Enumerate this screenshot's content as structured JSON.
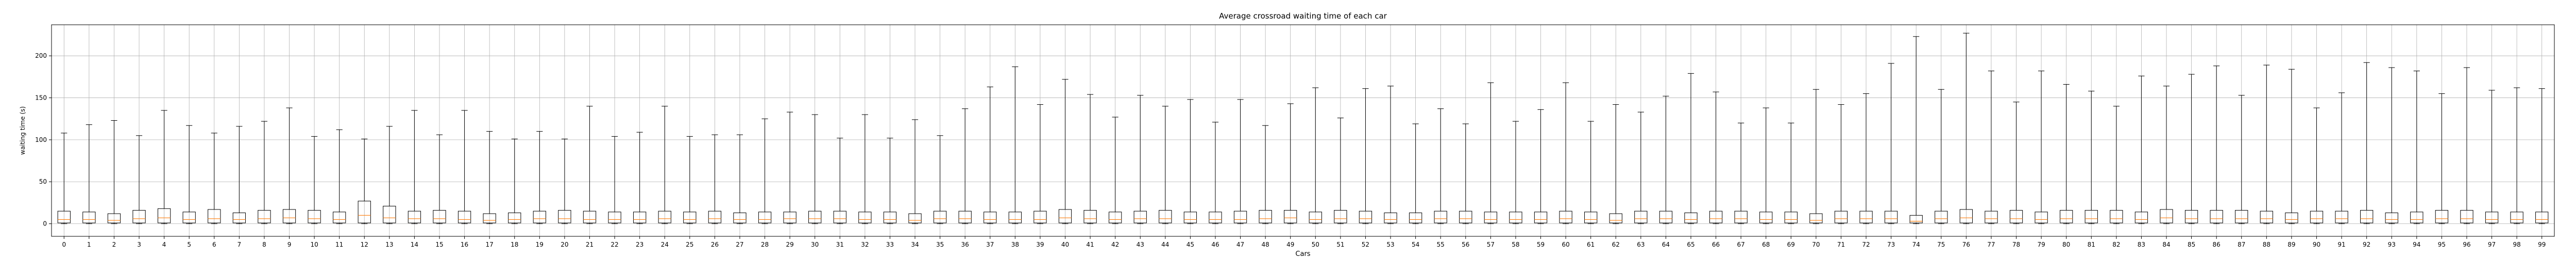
{
  "chart_data": {
    "type": "box",
    "title": "Average crossroad waiting time of each car",
    "xlabel": "Cars",
    "ylabel": "waiting time (s)",
    "ylim": [
      -15,
      237
    ],
    "yticks": [
      0,
      50,
      100,
      150,
      200
    ],
    "grid": true,
    "categories": [
      "0",
      "1",
      "2",
      "3",
      "4",
      "5",
      "6",
      "7",
      "8",
      "9",
      "10",
      "11",
      "12",
      "13",
      "14",
      "15",
      "16",
      "17",
      "18",
      "19",
      "20",
      "21",
      "22",
      "23",
      "24",
      "25",
      "26",
      "27",
      "28",
      "29",
      "30",
      "31",
      "32",
      "33",
      "34",
      "35",
      "36",
      "37",
      "38",
      "39",
      "40",
      "41",
      "42",
      "43",
      "44",
      "45",
      "46",
      "47",
      "48",
      "49",
      "50",
      "51",
      "52",
      "53",
      "54",
      "55",
      "56",
      "57",
      "58",
      "59",
      "60",
      "61",
      "62",
      "63",
      "64",
      "65",
      "66",
      "67",
      "68",
      "69",
      "70",
      "71",
      "72",
      "73",
      "74",
      "75",
      "76",
      "77",
      "78",
      "79",
      "80",
      "81",
      "82",
      "83",
      "84",
      "85",
      "86",
      "87",
      "88",
      "89",
      "90",
      "91",
      "92",
      "93",
      "94",
      "95",
      "96",
      "97",
      "98",
      "99"
    ],
    "boxes": {
      "whislo": [
        0,
        0,
        0,
        0,
        0,
        0,
        0,
        0,
        0,
        0,
        0,
        0,
        0,
        0,
        0,
        0,
        0,
        0,
        0,
        0,
        0,
        0,
        0,
        0,
        0,
        0,
        0,
        0,
        0,
        0,
        0,
        0,
        0,
        0,
        0,
        0,
        0,
        0,
        0,
        0,
        0,
        0,
        0,
        0,
        0,
        0,
        0,
        0,
        0,
        0,
        0,
        0,
        0,
        0,
        0,
        0,
        0,
        0,
        0,
        0,
        0,
        0,
        0,
        0,
        0,
        0,
        0,
        0,
        0,
        0,
        0,
        0,
        0,
        0,
        0,
        0,
        0,
        0,
        0,
        0,
        0,
        0,
        0,
        0,
        0,
        0,
        0,
        0,
        0,
        0,
        0,
        0,
        0,
        0,
        0,
        0,
        0,
        0,
        0,
        0
      ],
      "q1": [
        1,
        1,
        1,
        1,
        1,
        1,
        1,
        1,
        1,
        1,
        1,
        1,
        1,
        1,
        1,
        1,
        1,
        1,
        1,
        1,
        1,
        1,
        1,
        1,
        1,
        1,
        1,
        1,
        1,
        1,
        1,
        1,
        1,
        1,
        1,
        1,
        1,
        1,
        1,
        1,
        1,
        1,
        1,
        1,
        1,
        1,
        1,
        1,
        1,
        1,
        1,
        1,
        1,
        1,
        1,
        1,
        1,
        1,
        1,
        1,
        1,
        1,
        1,
        1,
        1,
        1,
        1,
        1,
        1,
        1,
        1,
        1,
        1,
        1,
        1,
        1,
        1,
        1,
        1,
        1,
        1,
        1,
        1,
        1,
        1,
        1,
        1,
        1,
        1,
        1,
        1,
        1,
        1,
        1,
        1,
        1,
        1,
        1,
        1,
        1
      ],
      "med": [
        5,
        5,
        4,
        6,
        7,
        5,
        6,
        5,
        6,
        7,
        6,
        5,
        10,
        7,
        6,
        6,
        5,
        4,
        5,
        6,
        6,
        5,
        5,
        5,
        6,
        5,
        6,
        5,
        5,
        6,
        6,
        6,
        5,
        5,
        4,
        6,
        6,
        5,
        5,
        5,
        7,
        6,
        5,
        6,
        6,
        5,
        5,
        5,
        6,
        7,
        5,
        6,
        6,
        5,
        5,
        6,
        6,
        5,
        5,
        5,
        6,
        5,
        4,
        6,
        6,
        5,
        6,
        6,
        5,
        5,
        4,
        6,
        6,
        6,
        3,
        6,
        7,
        6,
        6,
        5,
        6,
        6,
        6,
        5,
        7,
        6,
        6,
        6,
        6,
        5,
        6,
        6,
        6,
        5,
        5,
        6,
        6,
        5,
        5,
        5
      ],
      "q3": [
        15,
        14,
        12,
        16,
        18,
        14,
        17,
        13,
        16,
        17,
        16,
        14,
        27,
        21,
        15,
        16,
        15,
        12,
        13,
        15,
        16,
        15,
        14,
        14,
        15,
        14,
        15,
        13,
        14,
        14,
        15,
        15,
        14,
        14,
        12,
        15,
        15,
        14,
        14,
        15,
        17,
        16,
        14,
        15,
        16,
        14,
        14,
        15,
        16,
        16,
        14,
        16,
        15,
        13,
        13,
        15,
        15,
        14,
        14,
        14,
        15,
        14,
        12,
        15,
        15,
        13,
        15,
        15,
        14,
        14,
        12,
        15,
        15,
        15,
        10,
        15,
        17,
        15,
        16,
        14,
        16,
        16,
        16,
        14,
        17,
        16,
        16,
        16,
        15,
        13,
        15,
        15,
        16,
        13,
        14,
        16,
        16,
        14,
        14,
        14
      ],
      "whishi": [
        108,
        118,
        123,
        105,
        135,
        117,
        108,
        116,
        122,
        138,
        104,
        112,
        101,
        116,
        135,
        106,
        135,
        110,
        101,
        110,
        101,
        140,
        104,
        109,
        140,
        104,
        106,
        106,
        125,
        133,
        130,
        102,
        130,
        102,
        124,
        105,
        137,
        163,
        187,
        142,
        172,
        154,
        127,
        153,
        140,
        148,
        121,
        148,
        117,
        143,
        162,
        126,
        161,
        164,
        119,
        137,
        119,
        168,
        122,
        136,
        168,
        122,
        142,
        133,
        152,
        179,
        157,
        120,
        138,
        120,
        160,
        142,
        155,
        191,
        223,
        160,
        227,
        182,
        145,
        182,
        166,
        158,
        140,
        176,
        164,
        178,
        188,
        153,
        189,
        184,
        138,
        156,
        192,
        186,
        182,
        155,
        186,
        159,
        162,
        161
      ]
    }
  }
}
